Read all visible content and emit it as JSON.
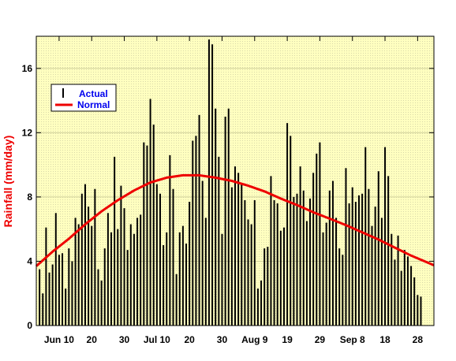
{
  "chart_data": {
    "type": "bar",
    "ylabel": "Rainfall (mm/day)",
    "ylim": [
      0,
      18
    ],
    "yticks": [
      0,
      4,
      8,
      12,
      16
    ],
    "xlim": [
      0,
      122
    ],
    "xticks": [
      {
        "x": 7,
        "label": "Jun 10"
      },
      {
        "x": 17,
        "label": "20"
      },
      {
        "x": 27,
        "label": "30"
      },
      {
        "x": 37,
        "label": "Jul 10"
      },
      {
        "x": 47,
        "label": "20"
      },
      {
        "x": 57,
        "label": "30"
      },
      {
        "x": 67,
        "label": "Aug 9"
      },
      {
        "x": 77,
        "label": "19"
      },
      {
        "x": 87,
        "label": "29"
      },
      {
        "x": 97,
        "label": "Sep 8"
      },
      {
        "x": 107,
        "label": "18"
      },
      {
        "x": 117,
        "label": "28"
      }
    ],
    "legend": {
      "position": "top-left",
      "actual_label": "Actual",
      "normal_label": "Normal"
    },
    "colors": {
      "plot_bg": "#ffffc0",
      "bar": "#000000",
      "normal_line": "#ee0000",
      "ylabel": "#ee0000",
      "legend_text": "#0000ee"
    },
    "series": [
      {
        "name": "Actual",
        "values": [
          3.5,
          2.0,
          6.1,
          3.3,
          3.8,
          7.0,
          4.4,
          4.5,
          2.3,
          4.8,
          4.0,
          6.7,
          6.3,
          8.2,
          8.8,
          7.4,
          6.2,
          8.5,
          3.5,
          2.8,
          4.8,
          7.0,
          5.8,
          10.5,
          6.0,
          8.7,
          7.3,
          4.7,
          6.3,
          5.7,
          6.7,
          6.9,
          11.4,
          11.2,
          14.1,
          12.5,
          8.8,
          8.2,
          5.0,
          5.8,
          10.6,
          8.5,
          3.2,
          5.8,
          6.2,
          5.1,
          7.7,
          11.5,
          11.8,
          13.1,
          9.0,
          6.7,
          17.8,
          17.5,
          13.5,
          10.5,
          5.7,
          13.0,
          13.5,
          8.6,
          9.9,
          9.5,
          8.8,
          7.8,
          6.6,
          6.3,
          7.8,
          2.3,
          2.8,
          4.8,
          4.9,
          9.3,
          7.8,
          7.6,
          5.9,
          6.1,
          12.6,
          11.8,
          8.0,
          8.2,
          9.9,
          8.4,
          6.5,
          7.9,
          9.5,
          10.7,
          11.4,
          5.8,
          6.4,
          8.4,
          9.0,
          6.7,
          4.8,
          4.4,
          9.8,
          7.6,
          8.6,
          7.7,
          8.1,
          8.2,
          11.1,
          8.5,
          6.2,
          7.4,
          9.6,
          6.7,
          11.1,
          9.3,
          5.7,
          4.1,
          5.6,
          3.4,
          4.7,
          4.3,
          3.7,
          3.0,
          1.9,
          1.8
        ]
      },
      {
        "name": "Normal",
        "x": [
          0,
          5,
          10,
          15,
          20,
          25,
          30,
          35,
          40,
          45,
          50,
          55,
          60,
          65,
          70,
          75,
          80,
          85,
          90,
          95,
          100,
          105,
          110,
          115,
          122
        ],
        "values": [
          3.7,
          4.6,
          5.4,
          6.3,
          7.1,
          7.8,
          8.4,
          8.9,
          9.2,
          9.35,
          9.35,
          9.2,
          9.0,
          8.7,
          8.35,
          7.9,
          7.5,
          7.05,
          6.65,
          6.25,
          5.8,
          5.35,
          4.85,
          4.35,
          3.75
        ]
      }
    ]
  }
}
